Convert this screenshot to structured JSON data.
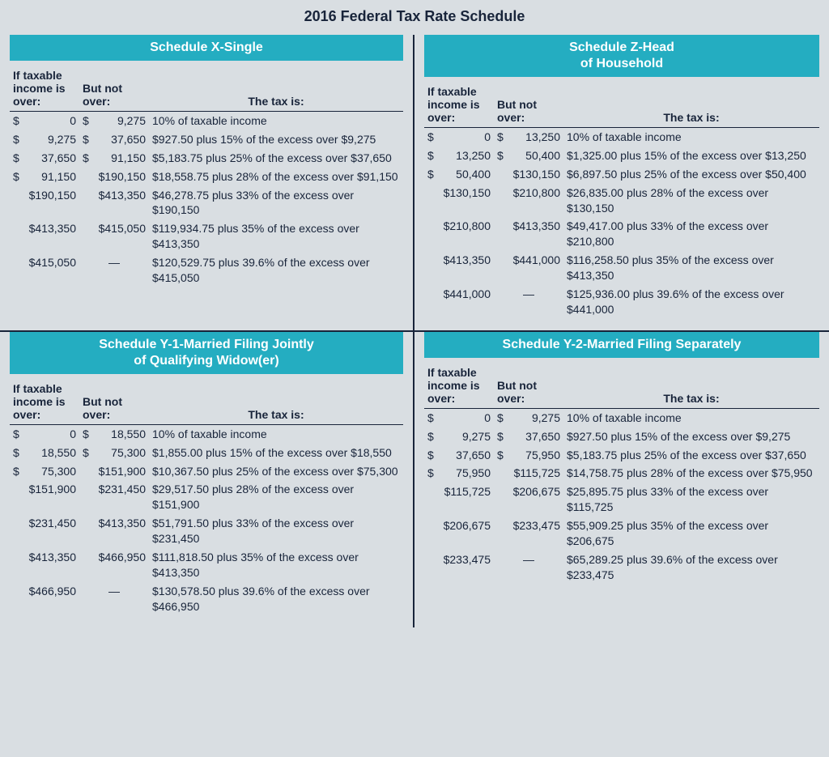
{
  "title": "2016 Federal Tax Rate Schedule",
  "colors": {
    "header_bg": "#24adc1",
    "header_text": "#ffffff",
    "page_bg": "#d9dee2",
    "text": "#18243a",
    "divider": "#18243a"
  },
  "typography": {
    "title_fontsize": 18,
    "header_fontsize": 16,
    "body_fontsize": 14,
    "font_family": "Arial"
  },
  "column_headers": {
    "over_line1": "If taxable",
    "over_line2": "income is",
    "over_line3": "over:",
    "butnot_line1": "But not",
    "butnot_line2": "over:",
    "tax": "The tax is:"
  },
  "schedules": [
    {
      "title": "Schedule X-Single",
      "rows": [
        {
          "over_sym": "$",
          "over": "0",
          "butnot_sym": "$",
          "butnot": "9,275",
          "tax": "10% of taxable income"
        },
        {
          "over_sym": "$",
          "over": "9,275",
          "butnot_sym": "$",
          "butnot": "37,650",
          "tax": "$927.50 plus 15% of the excess over $9,275"
        },
        {
          "over_sym": "$",
          "over": "37,650",
          "butnot_sym": "$",
          "butnot": "91,150",
          "tax": "$5,183.75 plus 25% of the excess over $37,650"
        },
        {
          "over_sym": "$",
          "over": "91,150",
          "butnot_sym": "",
          "butnot": "$190,150",
          "tax": "$18,558.75 plus 28% of the excess over $91,150"
        },
        {
          "over_sym": "",
          "over": "$190,150",
          "butnot_sym": "",
          "butnot": "$413,350",
          "tax": "$46,278.75 plus 33% of the excess over $190,150"
        },
        {
          "over_sym": "",
          "over": "$413,350",
          "butnot_sym": "",
          "butnot": "$415,050",
          "tax": "$119,934.75 plus 35% of the excess over $413,350"
        },
        {
          "over_sym": "",
          "over": "$415,050",
          "butnot_sym": "",
          "butnot": "—",
          "tax": "$120,529.75 plus 39.6% of the excess over $415,050"
        }
      ]
    },
    {
      "title": "Schedule Z-Head of Household",
      "rows": [
        {
          "over_sym": "$",
          "over": "0",
          "butnot_sym": "$",
          "butnot": "13,250",
          "tax": "10% of taxable income"
        },
        {
          "over_sym": "$",
          "over": "13,250",
          "butnot_sym": "$",
          "butnot": "50,400",
          "tax": "$1,325.00 plus 15% of the excess over $13,250"
        },
        {
          "over_sym": "$",
          "over": "50,400",
          "butnot_sym": "",
          "butnot": "$130,150",
          "tax": "$6,897.50 plus 25% of the excess over $50,400"
        },
        {
          "over_sym": "",
          "over": "$130,150",
          "butnot_sym": "",
          "butnot": "$210,800",
          "tax": "$26,835.00 plus 28% of the excess over $130,150"
        },
        {
          "over_sym": "",
          "over": "$210,800",
          "butnot_sym": "",
          "butnot": "$413,350",
          "tax": "$49,417.00 plus 33% of the excess over $210,800"
        },
        {
          "over_sym": "",
          "over": "$413,350",
          "butnot_sym": "",
          "butnot": "$441,000",
          "tax": "$116,258.50 plus 35% of the excess over $413,350"
        },
        {
          "over_sym": "",
          "over": "$441,000",
          "butnot_sym": "",
          "butnot": "—",
          "tax": "$125,936.00 plus 39.6% of the excess over $441,000"
        }
      ]
    },
    {
      "title": "Schedule Y-1-Married Filing Jointly of Qualifying Widow(er)",
      "rows": [
        {
          "over_sym": "$",
          "over": "0",
          "butnot_sym": "$",
          "butnot": "18,550",
          "tax": "10% of taxable income"
        },
        {
          "over_sym": "$",
          "over": "18,550",
          "butnot_sym": "$",
          "butnot": "75,300",
          "tax": "$1,855.00 plus 15% of the excess over $18,550"
        },
        {
          "over_sym": "$",
          "over": "75,300",
          "butnot_sym": "",
          "butnot": "$151,900",
          "tax": "$10,367.50 plus 25% of the excess over $75,300"
        },
        {
          "over_sym": "",
          "over": "$151,900",
          "butnot_sym": "",
          "butnot": "$231,450",
          "tax": "$29,517.50 plus 28% of the excess over $151,900"
        },
        {
          "over_sym": "",
          "over": "$231,450",
          "butnot_sym": "",
          "butnot": "$413,350",
          "tax": "$51,791.50 plus 33% of the excess over $231,450"
        },
        {
          "over_sym": "",
          "over": "$413,350",
          "butnot_sym": "",
          "butnot": "$466,950",
          "tax": "$111,818.50 plus 35% of the excess over $413,350"
        },
        {
          "over_sym": "",
          "over": "$466,950",
          "butnot_sym": "",
          "butnot": "—",
          "tax": "$130,578.50 plus 39.6% of the excess over $466,950"
        }
      ]
    },
    {
      "title": "Schedule Y-2-Married Filing Separately",
      "rows": [
        {
          "over_sym": "$",
          "over": "0",
          "butnot_sym": "$",
          "butnot": "9,275",
          "tax": "10% of taxable income"
        },
        {
          "over_sym": "$",
          "over": "9,275",
          "butnot_sym": "$",
          "butnot": "37,650",
          "tax": "$927.50 plus 15% of the excess over $9,275"
        },
        {
          "over_sym": "$",
          "over": "37,650",
          "butnot_sym": "$",
          "butnot": "75,950",
          "tax": "$5,183.75 plus 25% of the excess over $37,650"
        },
        {
          "over_sym": "$",
          "over": "75,950",
          "butnot_sym": "",
          "butnot": "$115,725",
          "tax": "$14,758.75 plus 28% of the excess over $75,950"
        },
        {
          "over_sym": "",
          "over": "$115,725",
          "butnot_sym": "",
          "butnot": "$206,675",
          "tax": "$25,895.75 plus 33% of the excess over $115,725"
        },
        {
          "over_sym": "",
          "over": "$206,675",
          "butnot_sym": "",
          "butnot": "$233,475",
          "tax": "$55,909.25 plus 35% of the excess over $206,675"
        },
        {
          "over_sym": "",
          "over": "$233,475",
          "butnot_sym": "",
          "butnot": "—",
          "tax": "$65,289.25 plus 39.6% of the excess over $233,475"
        }
      ]
    }
  ]
}
